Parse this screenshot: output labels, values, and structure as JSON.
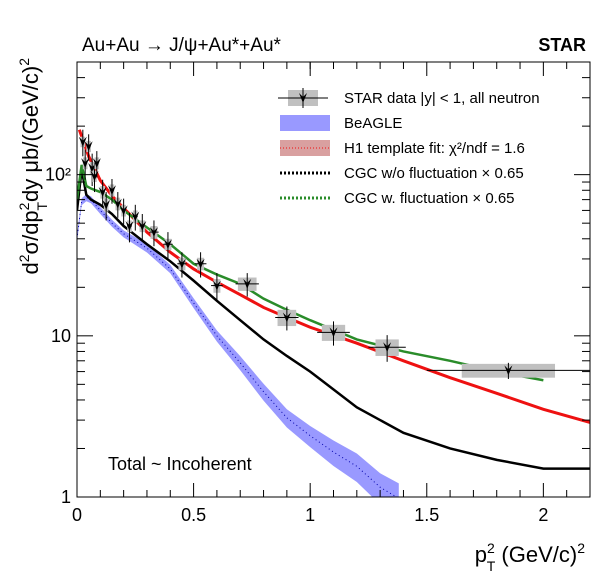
{
  "header": {
    "reaction": "Au+Au → J/ψ+Au*+Au*",
    "experiment": "STAR"
  },
  "annotation": "Total ~ Incoherent",
  "chart_data": {
    "type": "scatter",
    "xlabel": "p_T^2 (GeV/c)^2",
    "ylabel": "d^2σ/dp_T^2dy μb/(GeV/c)^2",
    "xlim": [
      0,
      2.2
    ],
    "ylim": [
      1,
      500
    ],
    "y_scale": "log",
    "grid": false,
    "legend_position": "top-right",
    "x_ticks": [
      {
        "value": 0,
        "label": "0"
      },
      {
        "value": 0.5,
        "label": "0.5"
      },
      {
        "value": 1,
        "label": "1"
      },
      {
        "value": 1.5,
        "label": "1.5"
      },
      {
        "value": 2,
        "label": "2"
      }
    ],
    "y_ticks": [
      {
        "value": 1,
        "label": "1"
      },
      {
        "value": 10,
        "label": "10"
      },
      {
        "value": 100,
        "label": "10²"
      }
    ],
    "legend": [
      {
        "key": "star",
        "label": "STAR data |y| < 1, all neutron"
      },
      {
        "key": "beagle",
        "label": "BeAGLE"
      },
      {
        "key": "h1",
        "label": "H1 template fit: χ²/ndf = 1.6"
      },
      {
        "key": "cgc_nofluc",
        "label": "CGC w/o fluctuation × 0.65"
      },
      {
        "key": "cgc_fluc",
        "label": "CGC w. fluctuation × 0.65"
      }
    ],
    "colors": {
      "star_data": "#000000",
      "syst_box": "#c0c0c0",
      "beagle_band": "#9999ff",
      "beagle_line": "#0000aa",
      "h1": "#ee1111",
      "h1_band": "#d9a0a0",
      "cgc_nofluc": "#000000",
      "cgc_fluc": "#2a8c2a"
    },
    "series": [
      {
        "name": "STAR data |y| < 1, all neutron",
        "points": [
          {
            "x": 0.025,
            "y": 160,
            "xerr": 0.005,
            "yerr": 30,
            "sx": 0.01,
            "sy": 12
          },
          {
            "x": 0.035,
            "y": 118,
            "xerr": 0.005,
            "yerr": 25,
            "sx": 0.01,
            "sy": 10
          },
          {
            "x": 0.05,
            "y": 150,
            "xerr": 0.006,
            "yerr": 28,
            "sx": 0.01,
            "sy": 12
          },
          {
            "x": 0.065,
            "y": 110,
            "xerr": 0.006,
            "yerr": 25,
            "sx": 0.01,
            "sy": 10
          },
          {
            "x": 0.075,
            "y": 98,
            "xerr": 0.006,
            "yerr": 20,
            "sx": 0.01,
            "sy": 8
          },
          {
            "x": 0.085,
            "y": 118,
            "xerr": 0.006,
            "yerr": 22,
            "sx": 0.01,
            "sy": 10
          },
          {
            "x": 0.11,
            "y": 78,
            "xerr": 0.007,
            "yerr": 15,
            "sx": 0.01,
            "sy": 7
          },
          {
            "x": 0.125,
            "y": 65,
            "xerr": 0.008,
            "yerr": 13,
            "sx": 0.01,
            "sy": 6
          },
          {
            "x": 0.15,
            "y": 80,
            "xerr": 0.008,
            "yerr": 14,
            "sx": 0.01,
            "sy": 7
          },
          {
            "x": 0.175,
            "y": 66,
            "xerr": 0.008,
            "yerr": 12,
            "sx": 0.01,
            "sy": 6
          },
          {
            "x": 0.2,
            "y": 60,
            "xerr": 0.009,
            "yerr": 11,
            "sx": 0.01,
            "sy": 5
          },
          {
            "x": 0.225,
            "y": 48,
            "xerr": 0.01,
            "yerr": 10,
            "sx": 0.01,
            "sy": 4
          },
          {
            "x": 0.25,
            "y": 55,
            "xerr": 0.01,
            "yerr": 10,
            "sx": 0.01,
            "sy": 5
          },
          {
            "x": 0.28,
            "y": 48,
            "xerr": 0.012,
            "yerr": 9,
            "sx": 0.012,
            "sy": 4
          },
          {
            "x": 0.33,
            "y": 44,
            "xerr": 0.02,
            "yerr": 8,
            "sx": 0.015,
            "sy": 4
          },
          {
            "x": 0.39,
            "y": 37,
            "xerr": 0.02,
            "yerr": 7,
            "sx": 0.015,
            "sy": 3
          },
          {
            "x": 0.45,
            "y": 28,
            "xerr": 0.02,
            "yerr": 5,
            "sx": 0.015,
            "sy": 2.5
          },
          {
            "x": 0.53,
            "y": 28,
            "xerr": 0.025,
            "yerr": 5,
            "sx": 0.015,
            "sy": 2.5
          },
          {
            "x": 0.6,
            "y": 20.5,
            "xerr": 0.025,
            "yerr": 4,
            "sx": 0.015,
            "sy": 2
          },
          {
            "x": 0.73,
            "y": 21,
            "xerr": 0.05,
            "yerr": 3.5,
            "sx": 0.04,
            "sy": 2
          },
          {
            "x": 0.9,
            "y": 13,
            "xerr": 0.05,
            "yerr": 2.2,
            "sx": 0.04,
            "sy": 1.5
          },
          {
            "x": 1.1,
            "y": 10.5,
            "xerr": 0.07,
            "yerr": 1.8,
            "sx": 0.05,
            "sy": 1.2
          },
          {
            "x": 1.33,
            "y": 8.5,
            "xerr": 0.08,
            "yerr": 1.6,
            "sx": 0.05,
            "sy": 1.0
          },
          {
            "x": 1.85,
            "y": 6.1,
            "xerr": 0.35,
            "yerr": 0.7,
            "sx": 0.2,
            "sy": 0.6
          }
        ]
      },
      {
        "name": "BeAGLE",
        "x": [
          0.0,
          0.02,
          0.04,
          0.06,
          0.1,
          0.15,
          0.2,
          0.3,
          0.4,
          0.5,
          0.6,
          0.7,
          0.8,
          0.9,
          1.0,
          1.1,
          1.2,
          1.3,
          1.38
        ],
        "y": [
          40,
          68,
          72,
          70,
          60,
          50,
          43,
          35,
          26,
          16,
          10,
          6.8,
          4.5,
          3.1,
          2.4,
          1.9,
          1.55,
          1.15,
          0.98
        ],
        "band_half_width_fraction": [
          0.05,
          0.05,
          0.05,
          0.05,
          0.05,
          0.05,
          0.05,
          0.06,
          0.06,
          0.07,
          0.08,
          0.1,
          0.12,
          0.13,
          0.15,
          0.18,
          0.2,
          0.22,
          0.24
        ]
      },
      {
        "name": "H1 template fit: χ²/ndf = 1.6",
        "x": [
          0.01,
          0.05,
          0.1,
          0.15,
          0.2,
          0.3,
          0.4,
          0.5,
          0.6,
          0.7,
          0.8,
          0.9,
          1.0,
          1.2,
          1.4,
          1.6,
          1.8,
          2.0,
          2.2
        ],
        "y": [
          190,
          130,
          92,
          74,
          62,
          44,
          33,
          26,
          21.5,
          18,
          15,
          13,
          11.3,
          9.0,
          7.0,
          5.5,
          4.4,
          3.5,
          2.9
        ]
      },
      {
        "name": "CGC w/o fluctuation × 0.65",
        "x": [
          0.0,
          0.02,
          0.04,
          0.06,
          0.1,
          0.15,
          0.2,
          0.3,
          0.4,
          0.5,
          0.6,
          0.7,
          0.8,
          0.9,
          1.0,
          1.2,
          1.4,
          1.6,
          1.8,
          2.0,
          2.2
        ],
        "y": [
          60,
          108,
          75,
          70,
          65,
          57,
          48,
          37,
          29,
          22,
          16.5,
          12.5,
          9.5,
          7.5,
          6.0,
          3.6,
          2.5,
          2.0,
          1.7,
          1.5,
          1.5
        ]
      },
      {
        "name": "CGC w. fluctuation × 0.65",
        "x": [
          0.0,
          0.02,
          0.04,
          0.06,
          0.1,
          0.15,
          0.2,
          0.3,
          0.4,
          0.5,
          0.6,
          0.7,
          0.8,
          0.9,
          1.0,
          1.2,
          1.4,
          1.6,
          1.8,
          2.0
        ],
        "y": [
          70,
          115,
          85,
          82,
          78,
          70,
          60,
          47,
          37,
          28,
          24,
          21,
          17,
          14.5,
          12.5,
          9.5,
          8.0,
          7.0,
          6.0,
          5.3
        ]
      }
    ]
  }
}
